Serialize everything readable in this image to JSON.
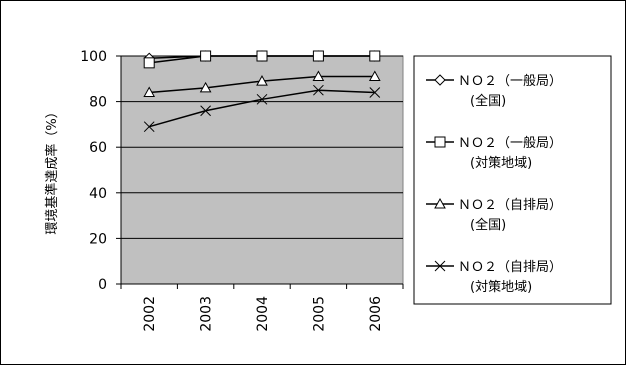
{
  "chart_data": {
    "type": "line",
    "title": "",
    "xlabel": "",
    "ylabel": "環境基準達成率（%）",
    "categories": [
      "2002",
      "2003",
      "2004",
      "2005",
      "2006"
    ],
    "ylim": [
      0,
      100
    ],
    "yticks": [
      0,
      20,
      40,
      60,
      80,
      100
    ],
    "grid": true,
    "legend_position": "right",
    "colors": {
      "plot_background": "#c0c0c0",
      "gridline": "#000000",
      "series_line": "#000000",
      "page_background": "#ffffff"
    },
    "series": [
      {
        "name": "ＮＯ２（一般局）(全国)",
        "name_lines": [
          "ＮＯ２（一般局）",
          "(全国)"
        ],
        "marker": "diamond",
        "values": [
          99,
          100,
          100,
          100,
          100
        ]
      },
      {
        "name": "ＮＯ２（一般局）(対策地域)",
        "name_lines": [
          "ＮＯ２（一般局）",
          "(対策地域)"
        ],
        "marker": "square",
        "values": [
          97,
          100,
          100,
          100,
          100
        ]
      },
      {
        "name": "ＮＯ２（自排局）(全国)",
        "name_lines": [
          "ＮＯ２（自排局）",
          "(全国)"
        ],
        "marker": "triangle",
        "values": [
          84,
          86,
          89,
          91,
          91
        ]
      },
      {
        "name": "ＮＯ２（自排局）(対策地域)",
        "name_lines": [
          "ＮＯ２（自排局）",
          "(対策地域)"
        ],
        "marker": "x",
        "values": [
          69,
          76,
          81,
          85,
          84
        ]
      }
    ]
  }
}
